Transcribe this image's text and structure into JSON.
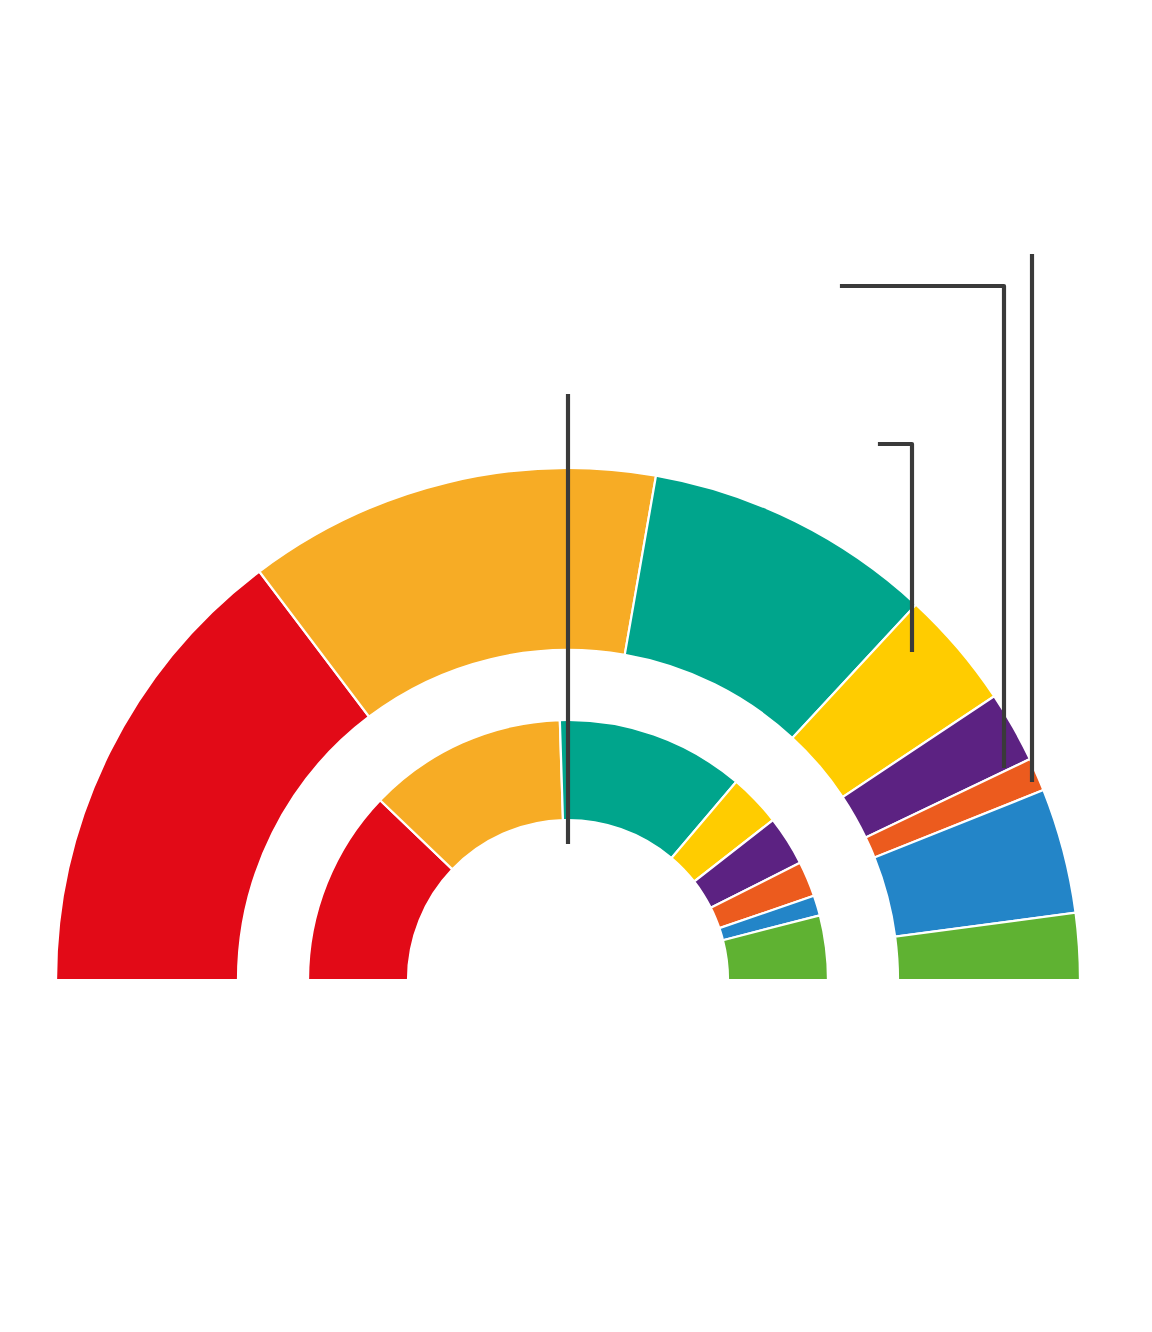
{
  "chart_data": {
    "type": "donut",
    "categories": [
      null,
      null,
      null,
      null,
      null,
      null,
      null,
      null
    ],
    "colors": [
      "#e20a17",
      "#f7ac25",
      "#00a58c",
      "#ffcc00",
      "#5c2282",
      "#ec5b1e",
      "#2385c8",
      "#5fb232"
    ],
    "series": [
      {
        "values": [
          29.4,
          26.1,
          18.3,
          7.5,
          4.5,
          2.1,
          7.9,
          4.2
        ]
      },
      {
        "values": [
          24.3,
          24.7,
          23.4,
          6.5,
          6.2,
          4.4,
          2.5,
          8.0
        ]
      }
    ]
  }
}
